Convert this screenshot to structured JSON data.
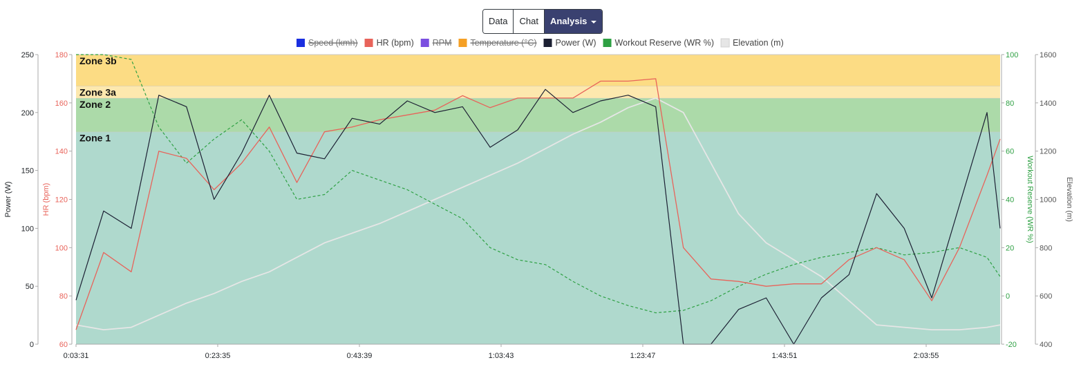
{
  "toolbar": {
    "data_label": "Data",
    "chat_label": "Chat",
    "analysis_label": "Analysis",
    "analysis_icon": "caret-down-icon"
  },
  "chart_data": {
    "type": "line",
    "x_ticks": [
      "0:03:31",
      "0:23:35",
      "0:43:39",
      "1:03:43",
      "1:23:47",
      "1:43:51",
      "2:03:55"
    ],
    "x_range": [
      "0:03:31",
      "2:17:24"
    ],
    "legend": [
      {
        "name": "Speed (kmh)",
        "color": "#1a2fe0",
        "hidden": true
      },
      {
        "name": "HR (bpm)",
        "color": "#e8635a",
        "hidden": false
      },
      {
        "name": "RPM",
        "color": "#7b4fe0",
        "hidden": true
      },
      {
        "name": "Temperature (°C)",
        "color": "#f5a025",
        "hidden": true
      },
      {
        "name": "Power (W)",
        "color": "#1c2033",
        "hidden": false
      },
      {
        "name": "Workout Reserve (WR %)",
        "color": "#2ea043",
        "hidden": false
      },
      {
        "name": "Elevation (m)",
        "color": "#e6e6e6",
        "hidden": false
      }
    ],
    "axes": {
      "power": {
        "label": "Power (W)",
        "range": [
          0,
          250
        ],
        "ticks": [
          "0",
          "50",
          "100",
          "150",
          "200",
          "250"
        ],
        "color": "#212529"
      },
      "hr": {
        "label": "HR (bpm)",
        "range": [
          60,
          180
        ],
        "ticks": [
          "60",
          "80",
          "100",
          "120",
          "140",
          "160",
          "180"
        ],
        "color": "#e8635a"
      },
      "wr": {
        "label": "Workout Reserve (WR %)",
        "range": [
          -20,
          100
        ],
        "ticks": [
          "-20",
          "0",
          "20",
          "40",
          "60",
          "80",
          "100"
        ],
        "color": "#2ea043"
      },
      "elevation": {
        "label": "Elevation (m)",
        "range": [
          400,
          1600
        ],
        "ticks": [
          "400",
          "600",
          "800",
          "1000",
          "1200",
          "1400",
          "1600"
        ],
        "color": "#555555"
      }
    },
    "zones": [
      {
        "name": "Zone 1",
        "hr_from": 60,
        "hr_to": 148,
        "color": "#afd9cd"
      },
      {
        "name": "Zone 2",
        "hr_from": 148,
        "hr_to": 162,
        "color": "#acdaa9"
      },
      {
        "name": "Zone 3a",
        "hr_from": 162,
        "hr_to": 167,
        "color": "#fde8ae"
      },
      {
        "name": "Zone 3b",
        "hr_from": 167,
        "hr_to": 180,
        "color": "#fcdc84"
      }
    ],
    "x_minutes": [
      0,
      4,
      8,
      12,
      16,
      20,
      24,
      28,
      32,
      36,
      40,
      44,
      48,
      52,
      56,
      60,
      64,
      68,
      72,
      76,
      80,
      84,
      88,
      92,
      96,
      100,
      104,
      108,
      112,
      116,
      120,
      124,
      128,
      132,
      133.9
    ],
    "series": [
      {
        "name": "Power (W)",
        "axis": "power",
        "values": [
          38,
          115,
          100,
          215,
          205,
          125,
          165,
          215,
          165,
          160,
          195,
          190,
          210,
          200,
          205,
          170,
          185,
          220,
          200,
          210,
          215,
          205,
          0,
          0,
          30,
          40,
          0,
          40,
          60,
          130,
          100,
          40,
          120,
          200,
          100
        ]
      },
      {
        "name": "HR (bpm)",
        "axis": "hr",
        "values": [
          66,
          98,
          90,
          140,
          137,
          124,
          135,
          150,
          127,
          148,
          150,
          153,
          155,
          157,
          163,
          158,
          162,
          162,
          162,
          169,
          169,
          170,
          100,
          87,
          86,
          84,
          85,
          85,
          95,
          100,
          95,
          78,
          100,
          130,
          145
        ]
      },
      {
        "name": "Workout Reserve (WR %)",
        "axis": "wr",
        "values": [
          100,
          100,
          98,
          70,
          55,
          65,
          73,
          60,
          40,
          42,
          52,
          48,
          44,
          38,
          32,
          20,
          15,
          13,
          6,
          0,
          -4,
          -7,
          -6,
          -2,
          4,
          9,
          13,
          16,
          18,
          20,
          17,
          18,
          20,
          16,
          8
        ]
      },
      {
        "name": "Elevation (m)",
        "axis": "elevation",
        "values": [
          480,
          460,
          470,
          520,
          570,
          610,
          660,
          700,
          760,
          820,
          860,
          900,
          950,
          1000,
          1050,
          1100,
          1150,
          1210,
          1270,
          1320,
          1380,
          1420,
          1360,
          1150,
          940,
          820,
          750,
          680,
          580,
          480,
          470,
          460,
          460,
          470,
          480
        ]
      }
    ]
  }
}
